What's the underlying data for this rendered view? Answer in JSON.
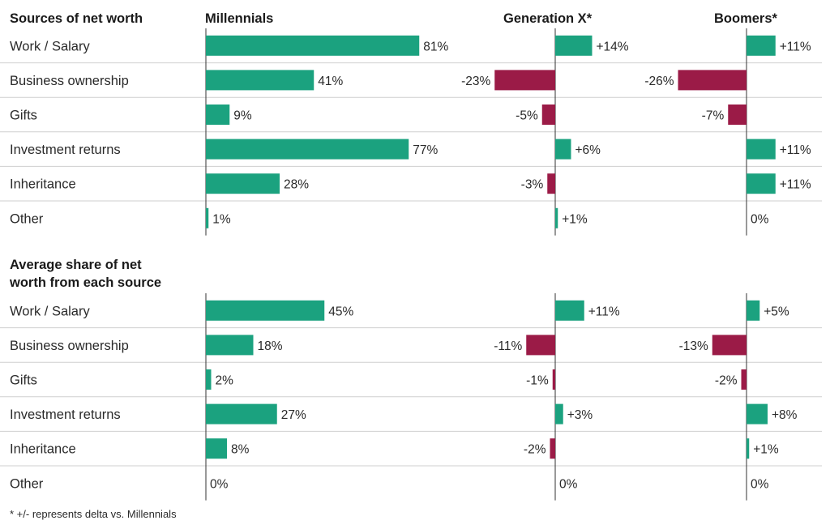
{
  "colors": {
    "positive": "#1ba27f",
    "negative": "#9b1b47",
    "text": "#2a2a2a",
    "divider": "#cfcfcf",
    "axis": "#333333"
  },
  "chart_data": [
    {
      "type": "bar",
      "title": "Sources of net worth",
      "column_headers": [
        "Millennials",
        "Generation X*",
        "Boomers*"
      ],
      "categories": [
        "Work / Salary",
        "Business ownership",
        "Gifts",
        "Investment returns",
        "Inheritance",
        "Other"
      ],
      "series": [
        {
          "name": "Millennials",
          "values": [
            81,
            41,
            9,
            77,
            28,
            1
          ],
          "labels": [
            "81%",
            "41%",
            "9%",
            "77%",
            "28%",
            "1%"
          ]
        },
        {
          "name": "Generation X*",
          "values": [
            14,
            -23,
            -5,
            6,
            -3,
            1
          ],
          "labels": [
            "+14%",
            "-23%",
            "-5%",
            "+6%",
            "-3%",
            "+1%"
          ]
        },
        {
          "name": "Boomers*",
          "values": [
            11,
            -26,
            -7,
            11,
            11,
            0
          ],
          "labels": [
            "+11%",
            "-26%",
            "-7%",
            "+11%",
            "+11%",
            "0%"
          ]
        }
      ]
    },
    {
      "type": "bar",
      "title_lines": [
        "Average share of net",
        "worth from each source"
      ],
      "categories": [
        "Work / Salary",
        "Business ownership",
        "Gifts",
        "Investment returns",
        "Inheritance",
        "Other"
      ],
      "series": [
        {
          "name": "Millennials",
          "values": [
            45,
            18,
            2,
            27,
            8,
            0
          ],
          "labels": [
            "45%",
            "18%",
            "2%",
            "27%",
            "8%",
            "0%"
          ]
        },
        {
          "name": "Generation X*",
          "values": [
            11,
            -11,
            -1,
            3,
            -2,
            0
          ],
          "labels": [
            "+11%",
            "-11%",
            "-1%",
            "+3%",
            "-2%",
            "0%"
          ]
        },
        {
          "name": "Boomers*",
          "values": [
            5,
            -13,
            -2,
            8,
            1,
            0
          ],
          "labels": [
            "+5%",
            "-13%",
            "-2%",
            "+8%",
            "+1%",
            "0%"
          ]
        }
      ]
    }
  ],
  "footnote": "* +/- represents delta vs. Millennials"
}
